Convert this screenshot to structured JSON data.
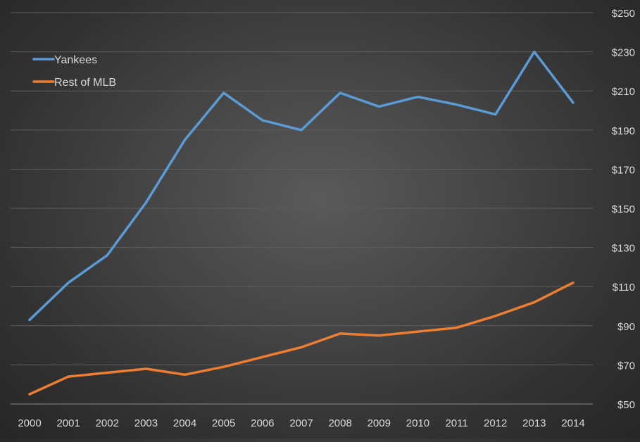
{
  "chart_data": {
    "type": "line",
    "title": "",
    "xlabel": "",
    "ylabel": "",
    "x": [
      "2000",
      "2001",
      "2002",
      "2003",
      "2004",
      "2005",
      "2006",
      "2007",
      "2008",
      "2009",
      "2010",
      "2011",
      "2012",
      "2013",
      "2014"
    ],
    "y_ticks": [
      "$50",
      "$70",
      "$90",
      "$110",
      "$130",
      "$150",
      "$170",
      "$190",
      "$210",
      "$230",
      "$250"
    ],
    "ylim": [
      50,
      250
    ],
    "grid": true,
    "y_axis_position": "right",
    "legend_position": "top-left",
    "series": [
      {
        "name": "Yankees",
        "color": "#5b9bd5",
        "values": [
          93,
          112,
          126,
          153,
          185,
          209,
          195,
          190,
          209,
          202,
          207,
          203,
          198,
          230,
          204
        ]
      },
      {
        "name": "Rest of MLB",
        "color": "#ed7d31",
        "values": [
          55,
          64,
          66,
          68,
          65,
          69,
          74,
          79,
          86,
          85,
          87,
          89,
          95,
          102,
          112
        ]
      }
    ]
  }
}
